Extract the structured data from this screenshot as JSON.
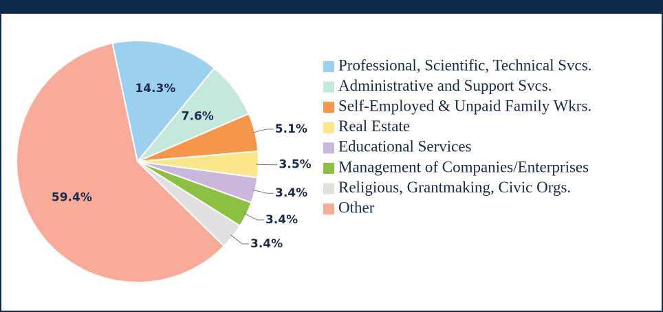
{
  "chart_data": {
    "type": "pie",
    "categories": [
      "Professional, Scientific, Technical Svcs.",
      "Administrative and Support Svcs.",
      "Self-Employed & Unpaid Family Wkrs.",
      "Real Estate",
      "Educational Services",
      "Management of Companies/Enterprises",
      "Religious, Grantmaking, Civic Orgs.",
      "Other"
    ],
    "values": [
      14.3,
      7.6,
      5.1,
      3.5,
      3.4,
      3.4,
      3.4,
      59.4
    ],
    "value_labels": [
      "14.3%",
      "7.6%",
      "5.1%",
      "3.5%",
      "3.4%",
      "3.4%",
      "3.4%",
      "59.4%"
    ],
    "colors": [
      "#9dcfee",
      "#c5e8dc",
      "#f5964a",
      "#fbe78a",
      "#c9b8dc",
      "#8cc040",
      "#e0e0e0",
      "#f8ab99"
    ],
    "legend": "right"
  }
}
